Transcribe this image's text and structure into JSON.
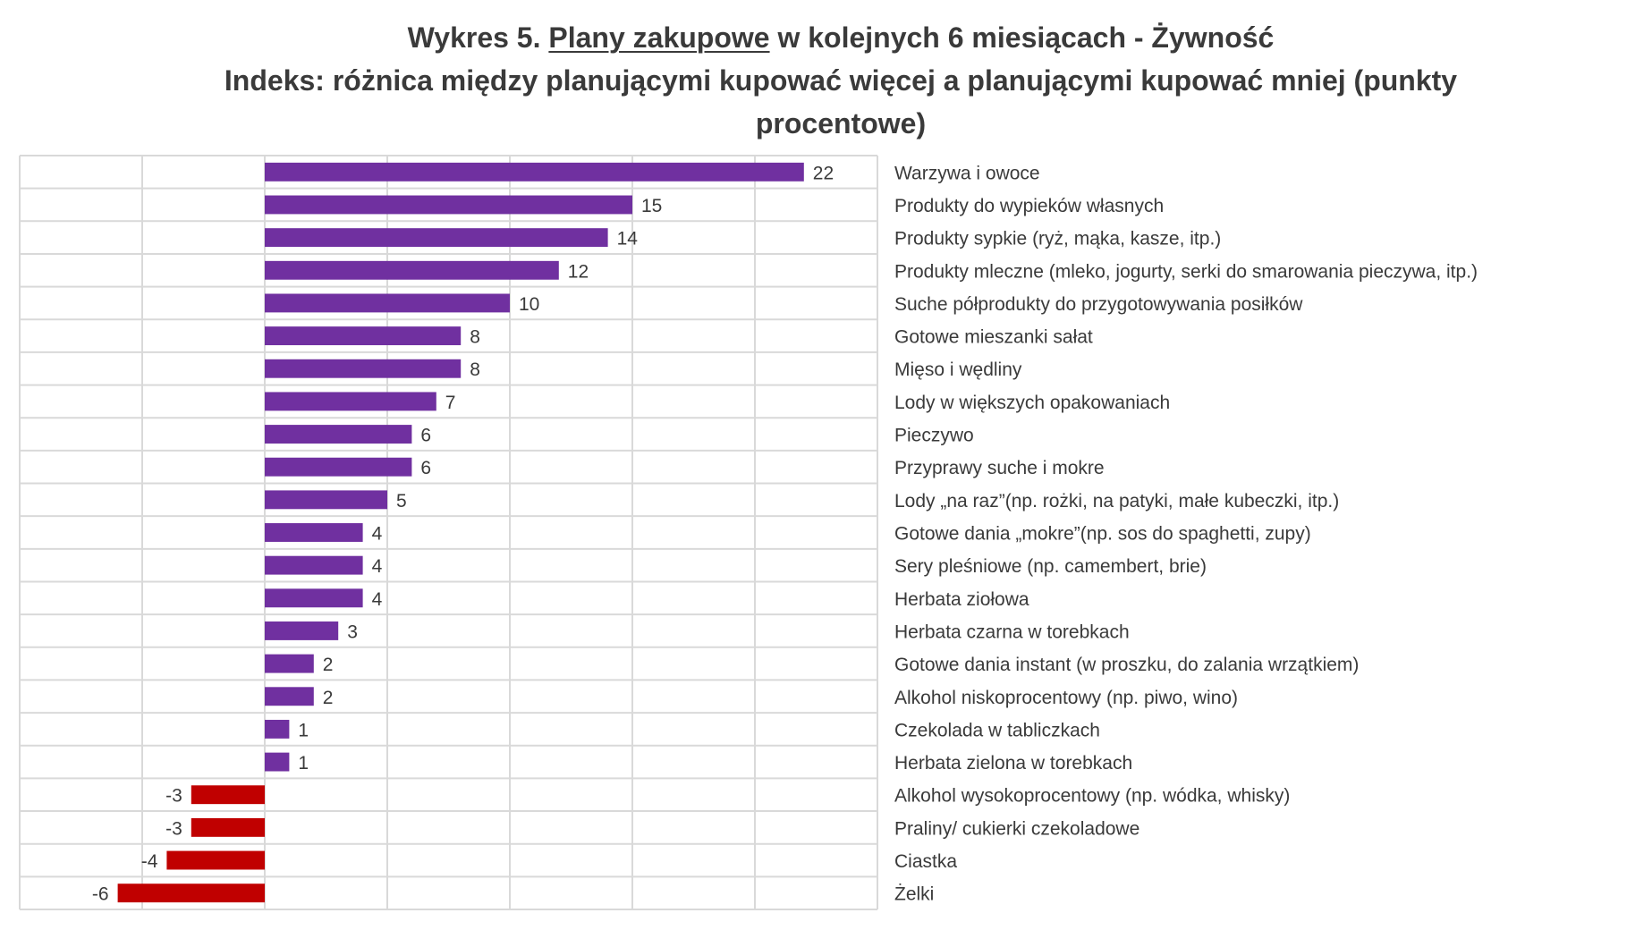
{
  "title": {
    "line1_prefix": "Wykres 5. ",
    "line1_underlined": "Plany zakupowe",
    "line1_suffix": " w kolejnych 6 miesiącach - Żywność",
    "line2": "Indeks: różnica między planującymi kupować więcej a planującymi kupować mniej (punkty",
    "line3": "procentowe)"
  },
  "colors": {
    "positive": "#7030A0",
    "negative": "#C00000",
    "grid": "#D9D9D9",
    "text": "#3A3A3A"
  },
  "chart_data": {
    "type": "bar",
    "orientation": "horizontal",
    "title": "Wykres 5. Plany zakupowe w kolejnych 6 miesiącach - Żywność. Indeks: różnica między planującymi kupować więcej a planującymi kupować mniej (punkty procentowe)",
    "xlabel": "",
    "ylabel": "",
    "xlim": [
      -10,
      25
    ],
    "grid_step": 5,
    "grid": true,
    "legend": "none",
    "category_labels_position": "right",
    "data_labels": true,
    "categories": [
      "Warzywa i owoce",
      "Produkty do wypieków własnych",
      "Produkty sypkie (ryż, mąka, kasze, itp.)",
      "Produkty mleczne (mleko, jogurty, serki do smarowania pieczywa, itp.)",
      "Suche półprodukty do przygotowywania posiłków",
      "Gotowe mieszanki sałat",
      "Mięso i wędliny",
      "Lody w większych opakowaniach",
      "Pieczywo",
      "Przyprawy suche i mokre",
      "Lody „na raz”(np. rożki, na patyki, małe kubeczki, itp.)",
      "Gotowe dania „mokre”(np. sos do spaghetti, zupy)",
      "Sery pleśniowe (np. camembert, brie)",
      "Herbata ziołowa",
      "Herbata czarna w torebkach",
      "Gotowe dania instant (w proszku, do zalania wrzątkiem)",
      "Alkohol niskoprocentowy (np. piwo, wino)",
      "Czekolada w tabliczkach",
      "Herbata zielona w torebkach",
      "Alkohol wysokoprocentowy (np. wódka, whisky)",
      "Praliny/ cukierki czekoladowe",
      "Ciastka",
      "Żelki"
    ],
    "values": [
      22,
      15,
      14,
      12,
      10,
      8,
      8,
      7,
      6,
      6,
      5,
      4,
      4,
      4,
      3,
      2,
      2,
      1,
      1,
      -3,
      -3,
      -4,
      -6
    ]
  }
}
